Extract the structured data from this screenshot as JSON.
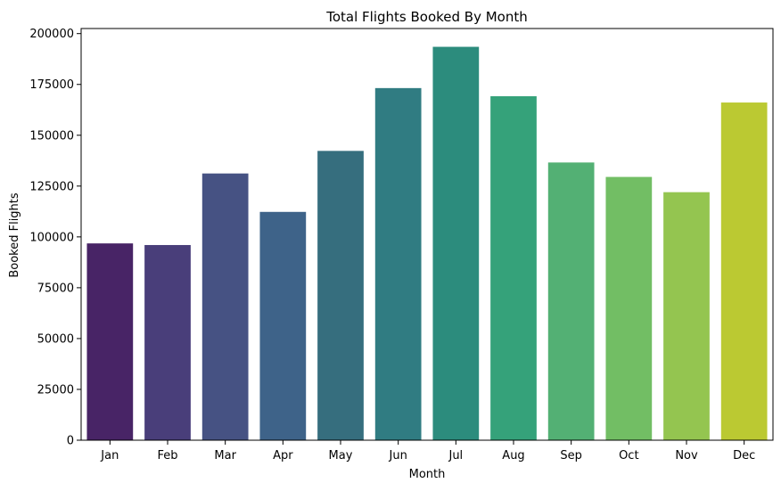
{
  "chart_data": {
    "type": "bar",
    "title": "Total Flights Booked By Month",
    "xlabel": "Month",
    "ylabel": "Booked Flights",
    "categories": [
      "Jan",
      "Feb",
      "Mar",
      "Apr",
      "May",
      "Jun",
      "Jul",
      "Aug",
      "Sep",
      "Oct",
      "Nov",
      "Dec"
    ],
    "values": [
      96800,
      96000,
      131200,
      112300,
      142300,
      173200,
      193500,
      169200,
      136600,
      129500,
      122000,
      166100
    ],
    "ylim": [
      0,
      202500
    ],
    "yticks": [
      0,
      25000,
      50000,
      75000,
      100000,
      125000,
      150000,
      175000,
      200000
    ],
    "ytick_labels": [
      "0",
      "25000",
      "50000",
      "75000",
      "100000",
      "125000",
      "150000",
      "175000",
      "200000"
    ],
    "colors": [
      "#482466",
      "#493e7a",
      "#465283",
      "#3e6389",
      "#366e7e",
      "#307c82",
      "#2c8c7d",
      "#35a27a",
      "#53b074",
      "#72be64",
      "#94c550",
      "#bbc932"
    ],
    "grid": false,
    "legend": "none"
  }
}
